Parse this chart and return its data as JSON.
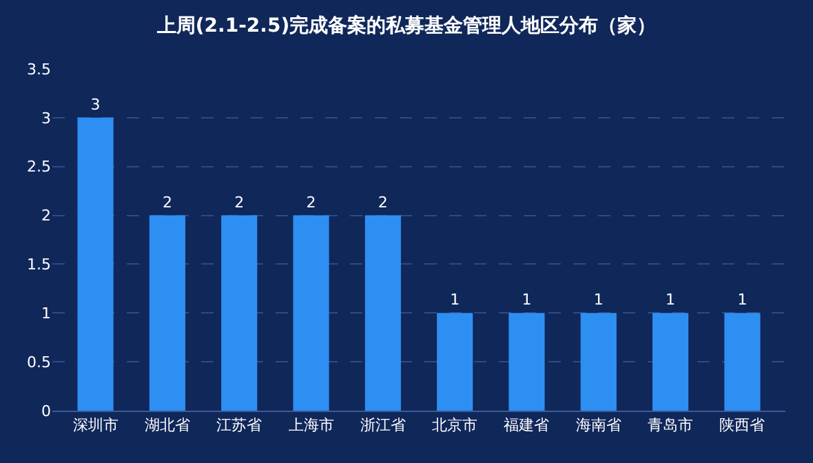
{
  "chart_data": {
    "type": "bar",
    "title": "上周(2.1-2.5)完成备案的私募基金管理人地区分布（家）",
    "categories": [
      "深圳市",
      "湖北省",
      "江苏省",
      "上海市",
      "浙江省",
      "北京市",
      "福建省",
      "海南省",
      "青岛市",
      "陕西省"
    ],
    "values": [
      3,
      2,
      2,
      2,
      2,
      1,
      1,
      1,
      1,
      1
    ],
    "color": "#2e8ff2",
    "ylim": [
      0,
      3.5
    ],
    "yticks": [
      0,
      0.5,
      1,
      1.5,
      2,
      2.5,
      3,
      3.5
    ],
    "grid": "y",
    "data_labels": true
  }
}
